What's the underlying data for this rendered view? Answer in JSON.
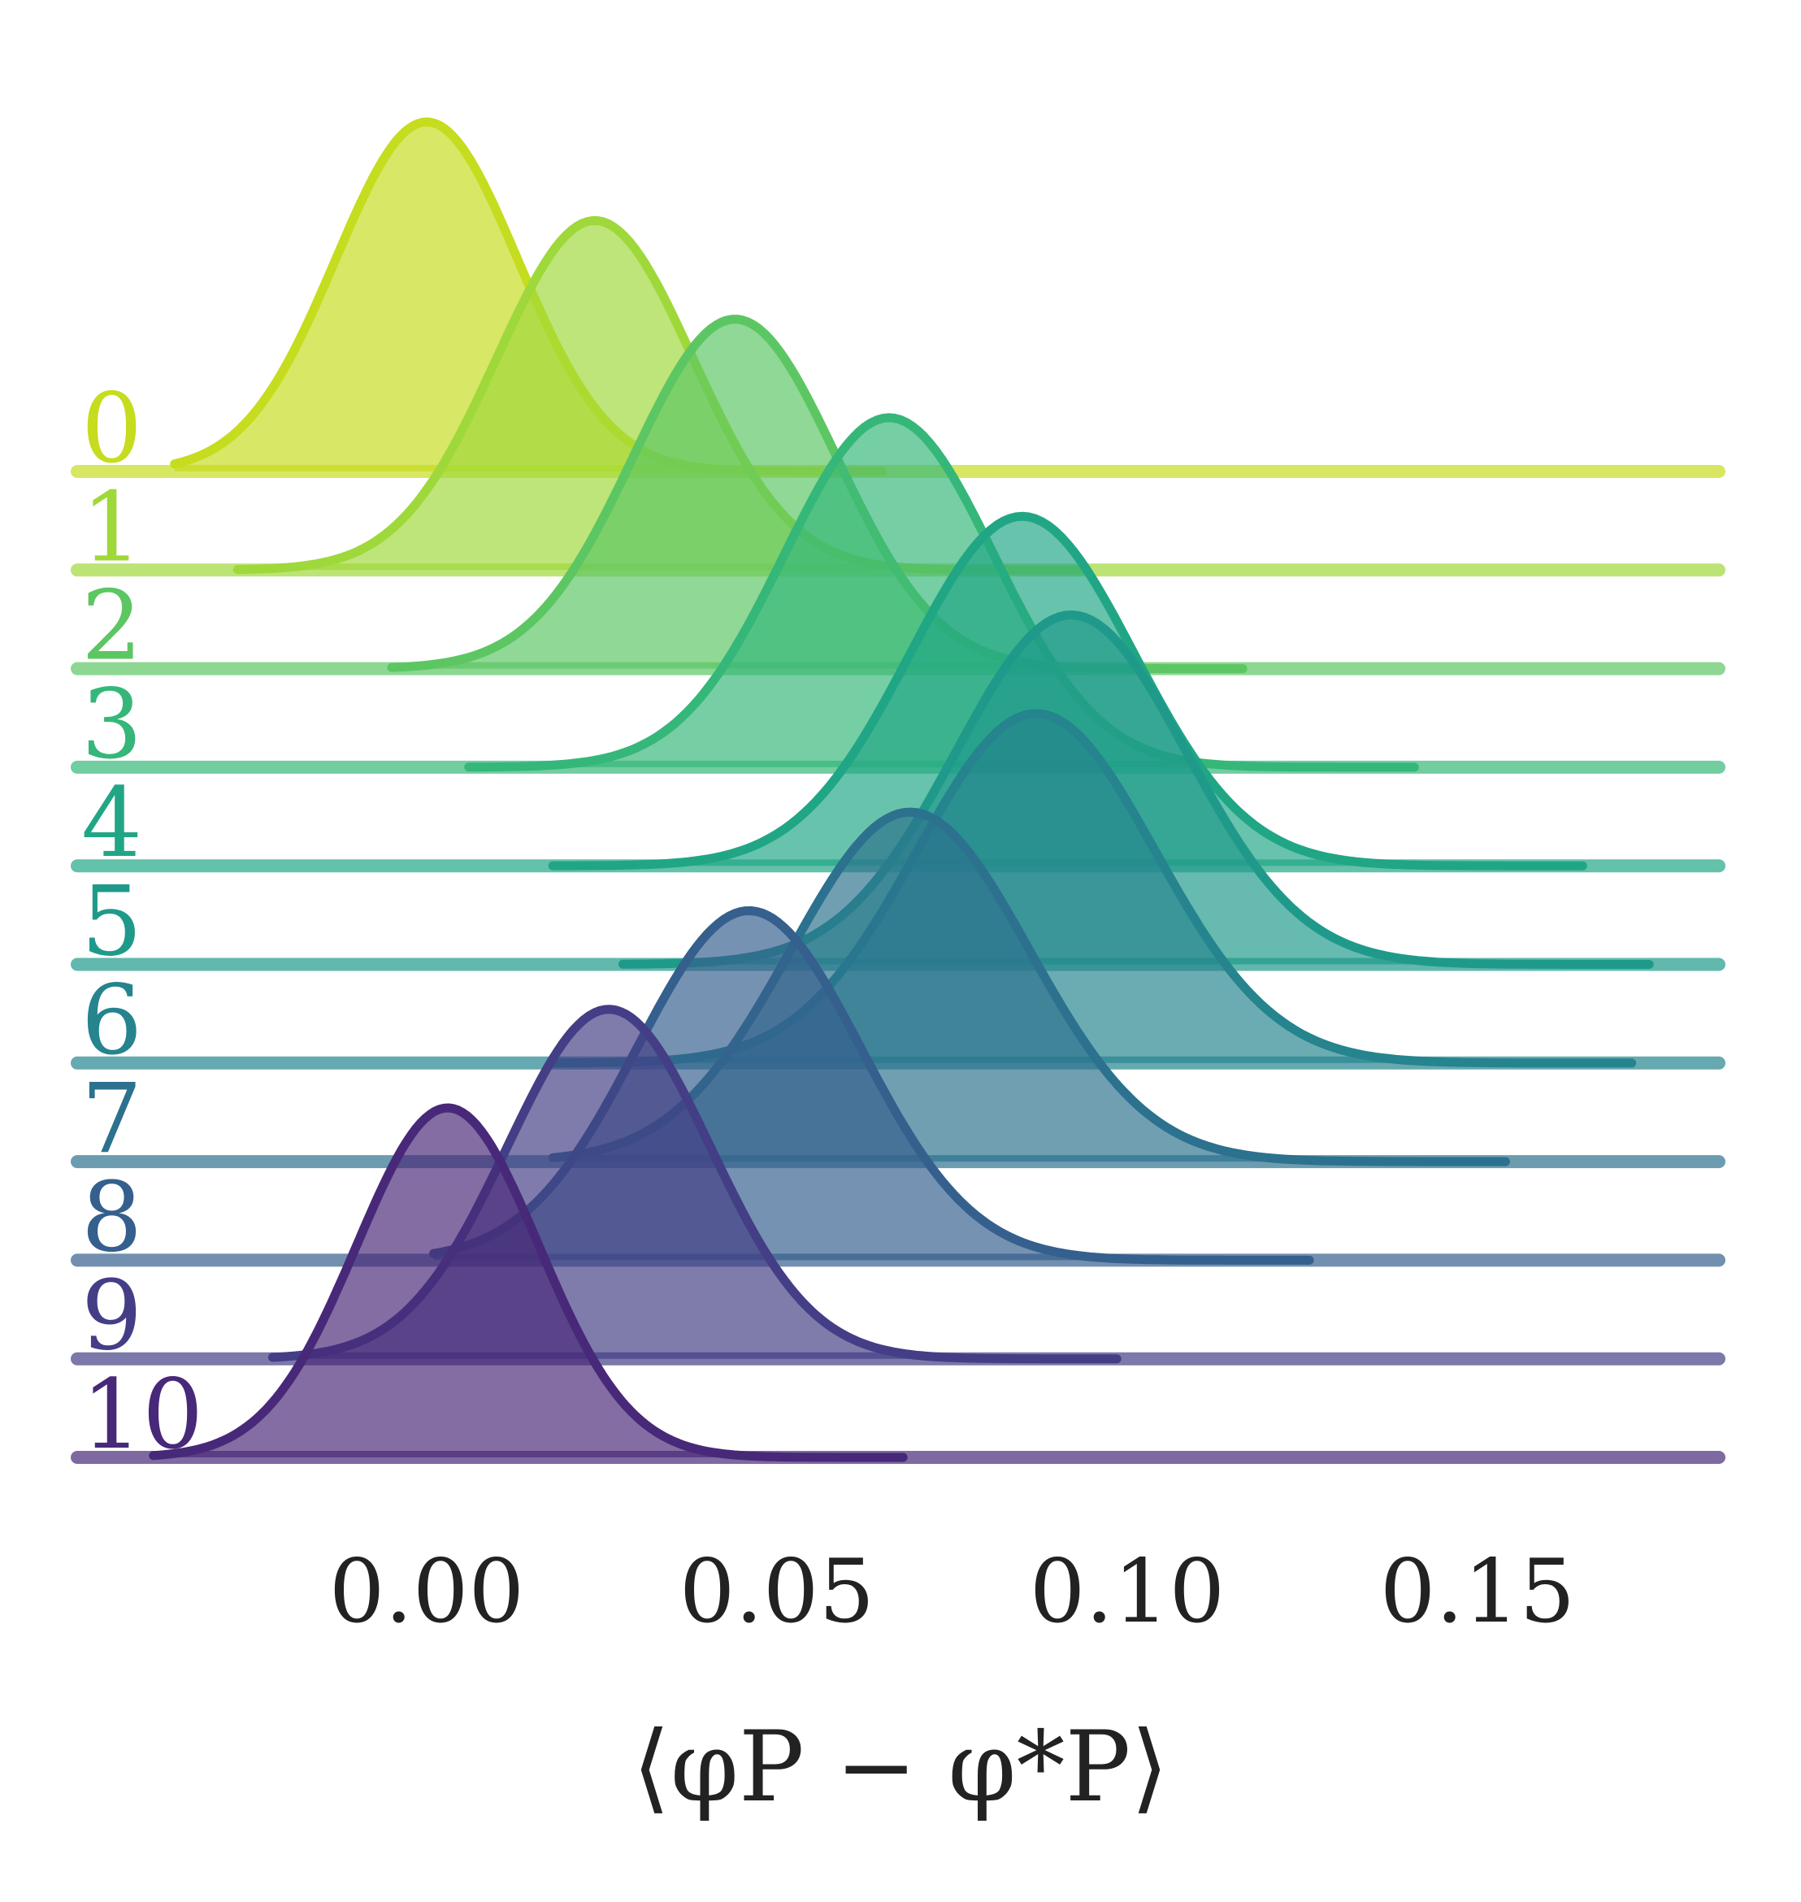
{
  "chart_data": {
    "type": "ridgeline",
    "xlabel": "⟨φP − φ*P⟩",
    "x_ticks": [
      0.0,
      0.05,
      0.1,
      0.15
    ],
    "x_tick_labels": [
      "0.00",
      "0.05",
      "0.10",
      "0.15"
    ],
    "xlim": [
      -0.05,
      0.185
    ],
    "series": [
      {
        "name": "0",
        "color": "#c6dc1e",
        "mean": 0.0,
        "sd": 0.013,
        "support": [
          -0.036,
          0.185
        ]
      },
      {
        "name": "1",
        "color": "#9fd83a",
        "mean": 0.024,
        "sd": 0.014,
        "support": [
          -0.027,
          0.185
        ]
      },
      {
        "name": "2",
        "color": "#5cc663",
        "mean": 0.044,
        "sd": 0.0145,
        "support": [
          -0.005,
          0.185
        ]
      },
      {
        "name": "3",
        "color": "#35b779",
        "mean": 0.066,
        "sd": 0.015,
        "support": [
          0.006,
          0.185
        ]
      },
      {
        "name": "4",
        "color": "#21a685",
        "mean": 0.085,
        "sd": 0.016,
        "support": [
          0.018,
          0.185
        ]
      },
      {
        "name": "5",
        "color": "#1f9a8a",
        "mean": 0.092,
        "sd": 0.0165,
        "support": [
          0.028,
          0.185
        ]
      },
      {
        "name": "6",
        "color": "#25848e",
        "mean": 0.087,
        "sd": 0.017,
        "support": [
          0.018,
          0.185
        ]
      },
      {
        "name": "7",
        "color": "#2c718e",
        "mean": 0.069,
        "sd": 0.017,
        "support": [
          0.018,
          0.185
        ]
      },
      {
        "name": "8",
        "color": "#355f8d",
        "mean": 0.046,
        "sd": 0.016,
        "support": [
          0.001,
          0.185
        ]
      },
      {
        "name": "9",
        "color": "#433e85",
        "mean": 0.026,
        "sd": 0.0145,
        "support": [
          -0.022,
          0.185
        ]
      },
      {
        "name": "10",
        "color": "#482878",
        "mean": 0.003,
        "sd": 0.013,
        "support": [
          -0.039,
          0.185
        ]
      }
    ]
  }
}
